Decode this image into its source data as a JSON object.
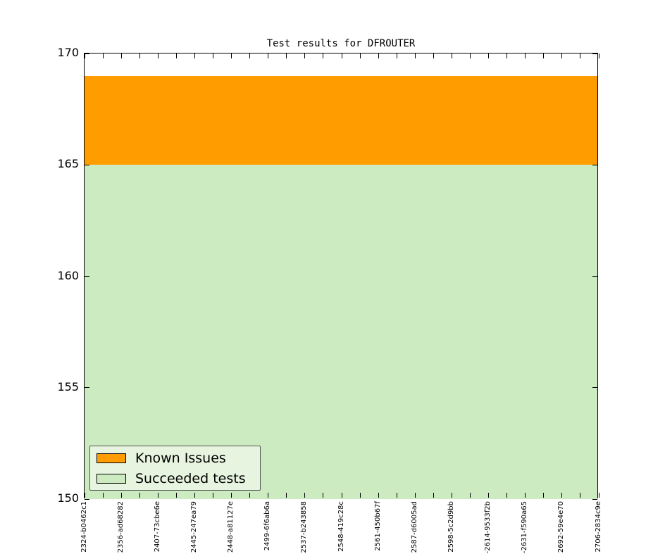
{
  "chart_data": {
    "type": "area",
    "stacked": true,
    "title": "Test results for DFROUTER",
    "x_labels": [
      "2324-b0462c1",
      "2356-ad68282",
      "2407-73cbe6e",
      "2445-247ea79",
      "2448-a81127e",
      "2499-6f6ab6a",
      "2537-b243858",
      "2548-419c28c",
      "2561-450b67f",
      "2587-d6005ad",
      "2598-5c2d9bb",
      "-2614-9533f2b",
      "-2631-f590a65",
      "2692-59e4e70",
      "2706-2834c9e"
    ],
    "minor_x_ticks_between": 1,
    "series": [
      {
        "name": "Known Issues",
        "color": "#FF9C00",
        "values": [
          4,
          4,
          4,
          4,
          4,
          4,
          4,
          4,
          4,
          4,
          4,
          4,
          4,
          4,
          4
        ]
      },
      {
        "name": "Succeeded tests",
        "color": "#CCEBC1",
        "values": [
          165,
          165,
          165,
          165,
          165,
          165,
          165,
          165,
          165,
          165,
          165,
          165,
          165,
          165,
          165
        ]
      }
    ],
    "total_per_point": 169,
    "ylim": [
      150,
      170
    ],
    "yticks": [
      170,
      165,
      160,
      155,
      150
    ],
    "grid": false,
    "tick_direction": "in",
    "legend": {
      "position": "lower left",
      "background": "#E7F4DF",
      "border_color": "#555555",
      "items": [
        {
          "label": "Known Issues",
          "color": "#FF9C00"
        },
        {
          "label": "Succeeded tests",
          "color": "#CCEBC1"
        }
      ]
    },
    "axis_color": "#000000",
    "plot_background": "#ffffff"
  }
}
